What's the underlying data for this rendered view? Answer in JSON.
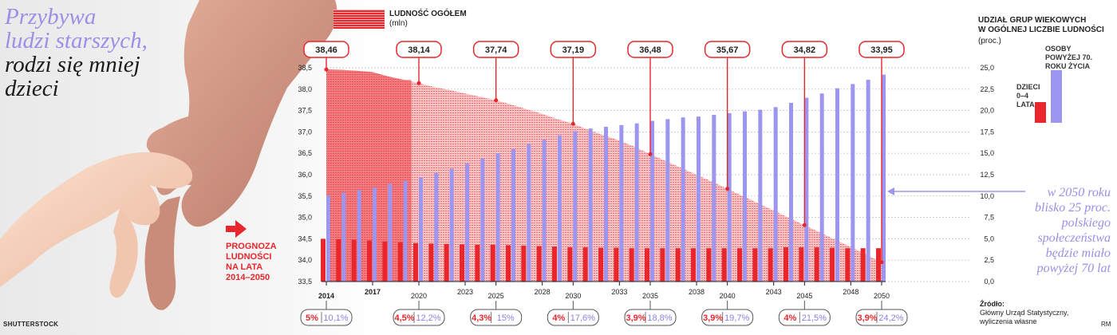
{
  "title": {
    "line1": "Przybywa",
    "line2": "ludzi starszych,",
    "line3": "rodzi się mniej",
    "line4": "dzieci"
  },
  "photo_credit": "SHUTTERSTOCK",
  "forecast_label": [
    "PROGNOZA",
    "LUDNOŚCI",
    "NA LATA",
    "2014–2050"
  ],
  "legend_total": {
    "label": "LUDNOŚĆ OGÓŁEM",
    "unit": "(mln)"
  },
  "right_legend": {
    "title_line1": "UDZIAŁ GRUP WIEKOWYCH",
    "title_line2": "W OGÓLNEJ LICZBIE LUDNOŚCI",
    "unit": "(proc.)",
    "old_label": [
      "OSOBY",
      "POWYŻEJ 70.",
      "ROKU ŻYCIA"
    ],
    "kids_label": [
      "DZIECI",
      "0–4 LATA"
    ]
  },
  "note": [
    "w 2050 roku",
    "blisko 25 proc.",
    "polskiego",
    "społeczeństwa",
    "będzie miało",
    "powyżej 70 lat"
  ],
  "source": {
    "heading": "Źródło:",
    "line1": "Główny Urząd Statystyczny,",
    "line2": "wyliczenia własne"
  },
  "credit_rm": "RM",
  "colors": {
    "red": "#e8262c",
    "purple": "#9d96f0",
    "area_light": "#f4a9ac"
  },
  "chart_data": {
    "type": "bar",
    "title": "LUDNOŚĆ OGÓŁEM (mln)",
    "left_axis": {
      "min": 33.5,
      "max": 38.5,
      "ticks": [
        "33,5",
        "34,0",
        "34,5",
        "35,0",
        "35,5",
        "36,0",
        "36,5",
        "37,0",
        "37,5",
        "38,0",
        "38,5"
      ]
    },
    "right_axis": {
      "min": 0,
      "max": 25,
      "ticks": [
        "0,0",
        "2,5",
        "5,0",
        "7,5",
        "10,0",
        "12,5",
        "15,0",
        "17,5",
        "20,0",
        "22,5",
        "25,0"
      ]
    },
    "years": [
      2014,
      2015,
      2016,
      2017,
      2018,
      2019,
      2020,
      2021,
      2022,
      2023,
      2024,
      2025,
      2026,
      2027,
      2028,
      2029,
      2030,
      2031,
      2032,
      2033,
      2034,
      2035,
      2036,
      2037,
      2038,
      2039,
      2040,
      2041,
      2042,
      2043,
      2044,
      2045,
      2046,
      2047,
      2048,
      2049,
      2050
    ],
    "x_labels": [
      {
        "year": 2014,
        "text": "2014"
      },
      {
        "year": 2017,
        "text": "2017"
      },
      {
        "year": 2020,
        "text": "2020"
      },
      {
        "year": 2023,
        "text": "2023"
      },
      {
        "year": 2025,
        "text": "2025"
      },
      {
        "year": 2028,
        "text": "2028"
      },
      {
        "year": 2030,
        "text": "2030"
      },
      {
        "year": 2033,
        "text": "2033"
      },
      {
        "year": 2035,
        "text": "2035"
      },
      {
        "year": 2038,
        "text": "2038"
      },
      {
        "year": 2040,
        "text": "2040"
      },
      {
        "year": 2043,
        "text": "2043"
      },
      {
        "year": 2045,
        "text": "2045"
      },
      {
        "year": 2048,
        "text": "2048"
      },
      {
        "year": 2050,
        "text": "2050"
      }
    ],
    "series": [
      {
        "name": "LUDNOŚĆ OGÓŁEM",
        "unit": "mln",
        "axis": "left",
        "values": [
          38.46,
          38.45,
          38.43,
          38.4,
          38.3,
          38.22,
          38.14,
          38.05,
          37.98,
          37.9,
          37.82,
          37.74,
          37.64,
          37.53,
          37.42,
          37.3,
          37.19,
          37.05,
          36.92,
          36.8,
          36.65,
          36.48,
          36.32,
          36.16,
          36.0,
          35.84,
          35.67,
          35.5,
          35.33,
          35.16,
          34.99,
          34.82,
          34.65,
          34.48,
          34.31,
          34.13,
          33.95
        ]
      },
      {
        "name": "OSOBY POWYŻEJ 70. ROKU ŻYCIA",
        "unit": "%",
        "axis": "right",
        "values": [
          10.1,
          10.4,
          10.7,
          11.0,
          11.4,
          11.8,
          12.2,
          12.7,
          13.2,
          13.8,
          14.4,
          15.0,
          15.5,
          16.1,
          16.6,
          17.1,
          17.6,
          17.9,
          18.1,
          18.3,
          18.5,
          18.8,
          19.0,
          19.2,
          19.3,
          19.5,
          19.7,
          19.9,
          20.1,
          20.4,
          20.9,
          21.5,
          22.0,
          22.6,
          23.1,
          23.6,
          24.2
        ]
      },
      {
        "name": "DZIECI 0–4 LATA",
        "unit": "%",
        "axis": "right",
        "values": [
          5.0,
          4.95,
          4.9,
          4.8,
          4.7,
          4.6,
          4.5,
          4.45,
          4.4,
          4.35,
          4.3,
          4.3,
          4.25,
          4.2,
          4.15,
          4.1,
          4.0,
          4.0,
          3.95,
          3.95,
          3.9,
          3.9,
          3.9,
          3.9,
          3.9,
          3.9,
          3.9,
          3.9,
          3.9,
          3.9,
          4.0,
          4.0,
          4.0,
          3.95,
          3.9,
          3.9,
          3.9
        ]
      }
    ],
    "callouts": [
      {
        "year": 2014,
        "text": "38,46"
      },
      {
        "year": 2020,
        "text": "38,14"
      },
      {
        "year": 2025,
        "text": "37,74"
      },
      {
        "year": 2030,
        "text": "37,19"
      },
      {
        "year": 2035,
        "text": "36,48"
      },
      {
        "year": 2040,
        "text": "35,67"
      },
      {
        "year": 2045,
        "text": "34,82"
      },
      {
        "year": 2050,
        "text": "33,95"
      }
    ],
    "pct_boxes": [
      {
        "year": 2014,
        "kids": "5%",
        "old": "10,1%"
      },
      {
        "year": 2020,
        "kids": "4,5%",
        "old": "12,2%"
      },
      {
        "year": 2025,
        "kids": "4,3%",
        "old": "15%"
      },
      {
        "year": 2030,
        "kids": "4%",
        "old": "17,6%"
      },
      {
        "year": 2035,
        "kids": "3,9%",
        "old": "18,8%"
      },
      {
        "year": 2040,
        "kids": "3,9%",
        "old": "19,7%"
      },
      {
        "year": 2045,
        "kids": "4%",
        "old": "21,5%"
      },
      {
        "year": 2050,
        "kids": "3,9%",
        "old": "24,2%"
      }
    ]
  }
}
